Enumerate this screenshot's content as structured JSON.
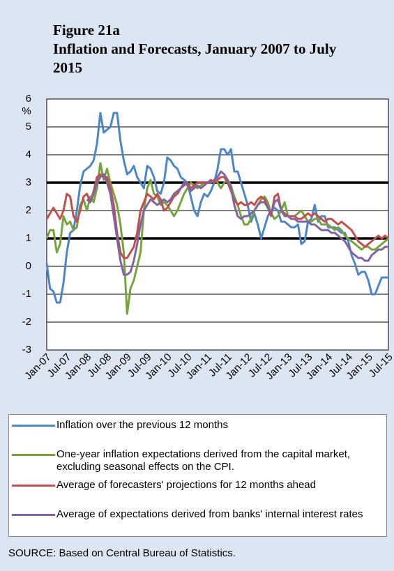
{
  "chart_data": {
    "type": "line",
    "figure_label": "Figure 21a",
    "title": "Inflation and Forecasts, January 2007 to July 2015",
    "y_label": "%",
    "source": "SOURCE: Based on Central Bureau of Statistics.",
    "categories": [
      "Jan-07",
      null,
      null,
      null,
      null,
      null,
      "Jul-07",
      null,
      null,
      null,
      null,
      null,
      "Jan-08",
      null,
      null,
      null,
      null,
      null,
      "Jul-08",
      null,
      null,
      null,
      null,
      null,
      "Jan-09",
      null,
      null,
      null,
      null,
      null,
      "Jul-09",
      null,
      null,
      null,
      null,
      null,
      "Jan-10",
      null,
      null,
      null,
      null,
      null,
      "Jul-10",
      null,
      null,
      null,
      null,
      null,
      "Jan-11",
      null,
      null,
      null,
      null,
      null,
      "Jul-11",
      null,
      null,
      null,
      null,
      null,
      "Jan-12",
      null,
      null,
      null,
      null,
      null,
      "Jul-12",
      null,
      null,
      null,
      null,
      null,
      "Jan-13",
      null,
      null,
      null,
      null,
      null,
      "Jul-13",
      null,
      null,
      null,
      null,
      null,
      "Jan-14",
      null,
      null,
      null,
      null,
      null,
      "Jul-14",
      null,
      null,
      null,
      null,
      null,
      "Jan-15",
      null,
      null,
      null,
      null,
      null,
      "Jul-15"
    ],
    "series": [
      {
        "name": "Inflation over the previous 12 months",
        "color": "#4a86c8",
        "values": [
          0.1,
          -0.8,
          -0.9,
          -1.3,
          -1.3,
          -0.6,
          0.5,
          1.2,
          1.3,
          2.0,
          2.9,
          3.4,
          3.5,
          3.6,
          3.8,
          4.4,
          5.5,
          4.8,
          4.9,
          5.0,
          5.5,
          5.5,
          4.5,
          3.8,
          3.3,
          3.4,
          3.6,
          3.2,
          3.0,
          2.8,
          3.6,
          3.5,
          3.2,
          2.7,
          2.6,
          3.0,
          3.9,
          3.8,
          3.6,
          3.5,
          3.2,
          3.1,
          3.0,
          2.5,
          2.0,
          1.8,
          2.3,
          2.6,
          2.5,
          2.7,
          3.0,
          3.5,
          4.2,
          4.2,
          4.0,
          4.2,
          3.4,
          3.4,
          3.0,
          2.6,
          2.2,
          1.6,
          1.9,
          1.5,
          1.0,
          1.4,
          1.8,
          2.0,
          2.1,
          2.0,
          1.6,
          1.6,
          1.5,
          1.4,
          1.4,
          1.5,
          0.8,
          0.9,
          1.6,
          1.7,
          2.2,
          1.6,
          1.8,
          1.8,
          1.4,
          1.4,
          1.4,
          1.3,
          1.2,
          1.2,
          0.9,
          0.4,
          0.1,
          -0.3,
          -0.2,
          -0.2,
          -0.5,
          -1.0,
          -1.0,
          -0.7,
          -0.4,
          -0.4,
          -0.4
        ]
      },
      {
        "name": "One-year inflation expectations derived from the capital market, excluding seasonal effects on the CPI.",
        "color": "#77a33c",
        "values": [
          1.0,
          1.3,
          1.3,
          0.5,
          0.8,
          1.8,
          1.5,
          1.6,
          1.3,
          1.4,
          2.2,
          2.4,
          2.0,
          2.5,
          2.3,
          2.8,
          3.7,
          3.1,
          3.5,
          3.0,
          2.6,
          2.2,
          1.5,
          0.5,
          -1.7,
          -0.8,
          -0.5,
          0.0,
          0.5,
          2.0,
          2.8,
          3.1,
          2.6,
          2.5,
          2.2,
          2.3,
          2.2,
          2.0,
          1.8,
          2.0,
          2.3,
          2.6,
          2.8,
          3.0,
          2.9,
          2.8,
          2.9,
          3.0,
          3.0,
          3.0,
          3.1,
          3.0,
          2.8,
          3.0,
          3.1,
          2.9,
          2.5,
          2.2,
          1.8,
          1.5,
          1.5,
          1.7,
          2.0,
          2.2,
          2.4,
          2.5,
          2.3,
          1.9,
          1.7,
          1.8,
          2.0,
          2.3,
          1.8,
          1.8,
          1.8,
          1.9,
          2.0,
          1.8,
          1.6,
          1.6,
          1.7,
          1.7,
          1.5,
          1.5,
          1.5,
          1.4,
          1.3,
          1.4,
          1.3,
          1.1,
          1.0,
          0.9,
          0.8,
          0.7,
          0.6,
          0.7,
          0.7,
          0.6,
          0.6,
          0.7,
          0.8,
          0.9,
          1.0
        ]
      },
      {
        "name": "Average of forecasters' projections for 12 months ahead",
        "color": "#c0504d",
        "values": [
          1.7,
          1.9,
          2.1,
          1.9,
          1.7,
          2.0,
          2.6,
          2.5,
          1.8,
          1.6,
          2.0,
          2.5,
          2.6,
          2.3,
          2.7,
          3.2,
          3.3,
          3.2,
          3.2,
          2.8,
          2.2,
          1.2,
          0.5,
          0.3,
          0.3,
          0.5,
          0.7,
          1.2,
          2.0,
          2.3,
          2.6,
          2.5,
          2.4,
          2.6,
          2.4,
          2.0,
          2.1,
          2.3,
          2.5,
          2.6,
          2.8,
          2.9,
          3.0,
          2.8,
          2.9,
          3.0,
          3.0,
          3.0,
          3.0,
          3.1,
          3.0,
          3.1,
          3.2,
          3.2,
          3.0,
          2.7,
          2.4,
          2.2,
          2.3,
          2.2,
          2.2,
          2.3,
          2.2,
          2.4,
          2.5,
          2.4,
          2.1,
          1.8,
          2.5,
          2.6,
          2.0,
          1.9,
          1.8,
          1.8,
          1.8,
          1.7,
          1.7,
          1.8,
          1.9,
          1.8,
          1.9,
          1.8,
          1.7,
          1.6,
          1.7,
          1.7,
          1.6,
          1.5,
          1.6,
          1.5,
          1.4,
          1.3,
          1.1,
          0.9,
          0.8,
          0.7,
          0.8,
          0.9,
          1.0,
          1.1,
          1.0,
          1.1,
          1.0
        ]
      },
      {
        "name": "Average of expectations derived from banks' internal interest rates",
        "color": "#8064a2",
        "values": [
          null,
          null,
          null,
          null,
          null,
          null,
          null,
          null,
          null,
          null,
          null,
          null,
          2.4,
          2.3,
          2.6,
          3.0,
          3.2,
          3.3,
          3.0,
          2.6,
          1.8,
          1.0,
          0.2,
          -0.3,
          -0.3,
          -0.2,
          0.2,
          0.8,
          1.5,
          2.0,
          2.2,
          2.4,
          2.3,
          2.2,
          2.3,
          2.4,
          2.3,
          2.4,
          2.6,
          2.7,
          2.8,
          3.0,
          2.9,
          2.7,
          2.8,
          2.9,
          2.8,
          2.9,
          3.0,
          3.0,
          3.1,
          3.2,
          3.4,
          3.3,
          3.1,
          2.8,
          2.2,
          1.8,
          1.7,
          1.8,
          1.8,
          1.9,
          2.0,
          2.2,
          2.3,
          2.3,
          2.1,
          1.9,
          2.3,
          2.4,
          2.0,
          1.8,
          1.8,
          1.7,
          1.7,
          1.6,
          1.6,
          1.6,
          1.6,
          1.5,
          1.5,
          1.4,
          1.3,
          1.3,
          1.3,
          1.2,
          1.2,
          1.1,
          1.0,
          0.9,
          0.7,
          0.5,
          0.4,
          0.3,
          0.3,
          0.2,
          0.2,
          0.4,
          0.5,
          0.6,
          0.6,
          0.7,
          0.7
        ]
      }
    ],
    "ylim": [
      -3,
      6
    ],
    "yticks": [
      -3,
      -2,
      -1,
      0,
      1,
      2,
      3,
      4,
      5,
      6
    ],
    "grid": true,
    "hlines": [
      1,
      3
    ]
  }
}
